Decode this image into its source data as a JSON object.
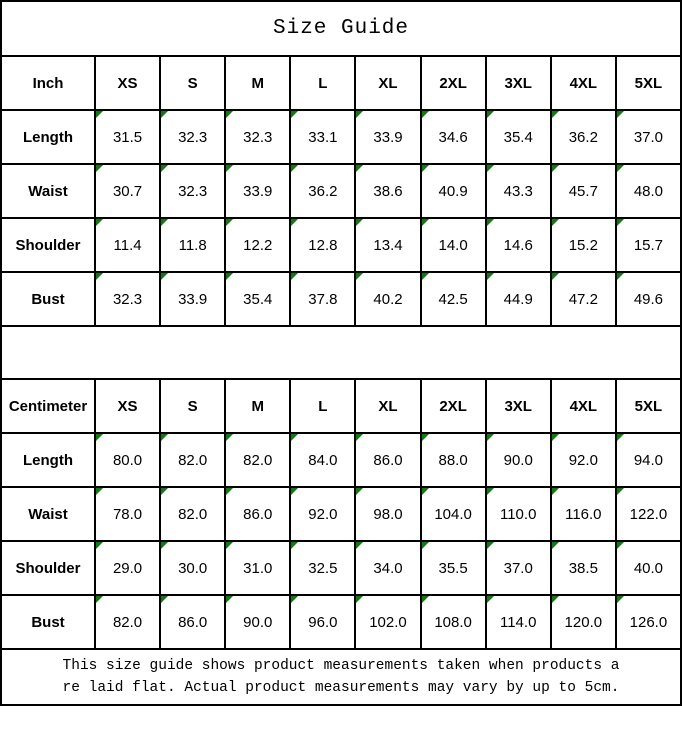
{
  "title": "Size Guide",
  "colors": {
    "border": "#000000",
    "background": "#ffffff",
    "text": "#000000",
    "flag_green": "#107C10"
  },
  "tables": [
    {
      "unit_label": "Inch",
      "size_headers": [
        "XS",
        "S",
        "M",
        "L",
        "XL",
        "2XL",
        "3XL",
        "4XL",
        "5XL"
      ],
      "rows": [
        {
          "label": "Length",
          "values": [
            "31.5",
            "32.3",
            "32.3",
            "33.1",
            "33.9",
            "34.6",
            "35.4",
            "36.2",
            "37.0"
          ]
        },
        {
          "label": "Waist",
          "values": [
            "30.7",
            "32.3",
            "33.9",
            "36.2",
            "38.6",
            "40.9",
            "43.3",
            "45.7",
            "48.0"
          ]
        },
        {
          "label": "Shoulder",
          "values": [
            "11.4",
            "11.8",
            "12.2",
            "12.8",
            "13.4",
            "14.0",
            "14.6",
            "15.2",
            "15.7"
          ]
        },
        {
          "label": "Bust",
          "values": [
            "32.3",
            "33.9",
            "35.4",
            "37.8",
            "40.2",
            "42.5",
            "44.9",
            "47.2",
            "49.6"
          ]
        }
      ]
    },
    {
      "unit_label": "Centimeter",
      "size_headers": [
        "XS",
        "S",
        "M",
        "L",
        "XL",
        "2XL",
        "3XL",
        "4XL",
        "5XL"
      ],
      "rows": [
        {
          "label": "Length",
          "values": [
            "80.0",
            "82.0",
            "82.0",
            "84.0",
            "86.0",
            "88.0",
            "90.0",
            "92.0",
            "94.0"
          ]
        },
        {
          "label": "Waist",
          "values": [
            "78.0",
            "82.0",
            "86.0",
            "92.0",
            "98.0",
            "104.0",
            "110.0",
            "116.0",
            "122.0"
          ]
        },
        {
          "label": "Shoulder",
          "values": [
            "29.0",
            "30.0",
            "31.0",
            "32.5",
            "34.0",
            "35.5",
            "37.0",
            "38.5",
            "40.0"
          ]
        },
        {
          "label": "Bust",
          "values": [
            "82.0",
            "86.0",
            "90.0",
            "96.0",
            "102.0",
            "108.0",
            "114.0",
            "120.0",
            "126.0"
          ]
        }
      ]
    }
  ],
  "footer": {
    "lines": [
      "This size guide shows product measurements taken when products a",
      "re laid flat. Actual product measurements may vary by up to 5cm."
    ]
  }
}
